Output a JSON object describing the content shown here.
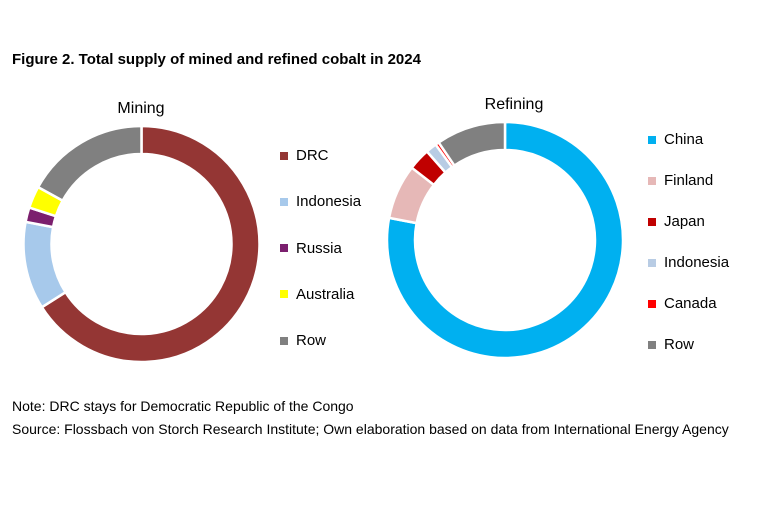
{
  "title": "Figure 2. Total supply of mined and refined cobalt in 2024",
  "chart_data": [
    {
      "type": "pie",
      "donut": true,
      "title": "Mining",
      "categories": [
        "DRC",
        "Indonesia",
        "Russia",
        "Australia",
        "Row"
      ],
      "values": [
        66,
        12,
        2,
        3,
        17
      ],
      "unit": "%",
      "colors": [
        "#943634",
        "#a7c9eb",
        "#7b1f6e",
        "#ffff00",
        "#808080"
      ],
      "legend": "right"
    },
    {
      "type": "pie",
      "donut": true,
      "title": "Refining",
      "categories": [
        "China",
        "Finland",
        "Japan",
        "Indonesia",
        "Canada",
        "Row"
      ],
      "values": [
        78,
        7.5,
        3,
        1.5,
        0.5,
        9.5
      ],
      "unit": "%",
      "colors": [
        "#00b0f0",
        "#e6b8b7",
        "#c00000",
        "#b8cce4",
        "#ff0000",
        "#808080"
      ],
      "legend": "right"
    }
  ],
  "notes": {
    "note": "Note: DRC stays for Democratic Republic of the Congo",
    "source": "Source: Flossbach von Storch Research Institute; Own elaboration based on data from International Energy Agency"
  }
}
